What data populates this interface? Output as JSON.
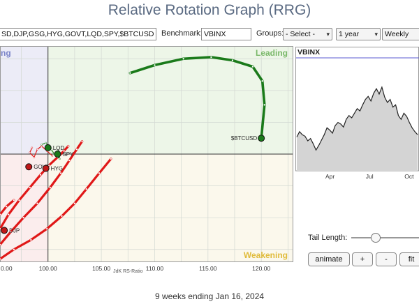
{
  "title": "Relative Rotation Graph (RRG)",
  "toolbar": {
    "symbols_value": "SD,DJP,GSG,HYG,GOVT,LQD,SPY,$BTCUSD",
    "benchmark_label": "Benchmark:",
    "benchmark_value": "VBINX",
    "groups_label": "Groups:",
    "groups_selected": "- Select -",
    "period_selected": "1 year",
    "frequency_selected": "Weekly"
  },
  "chart_data": [
    {
      "type": "scatter",
      "title": "",
      "xlabel": "JdK RS-Ratio",
      "ylabel": "",
      "xlim": [
        95.5,
        123
      ],
      "ylim": [
        93.2,
        106.8
      ],
      "x_ticks": [
        "100.00",
        "105.00",
        "110.00",
        "115.00",
        "120.00"
      ],
      "x_tick_values": [
        100,
        105,
        110,
        115,
        120
      ],
      "x_partial_tick": "0.00",
      "quadrants": {
        "leading": "Leading",
        "weakening": "Weakening",
        "lagging": "",
        "improving": "ng"
      },
      "center": [
        100,
        100
      ],
      "colors": {
        "leading": "#edf6e8",
        "weakening": "#fbf8ec",
        "lagging": "#fbeded",
        "improving": "#ececf7",
        "btc_tail": "#1a7a1a",
        "other_tails": "#e01818"
      },
      "series": [
        {
          "name": "$BTCUSD",
          "color": "#1a7a1a",
          "x": [
            107.7,
            110.0,
            112.7,
            115.3,
            117.3,
            119.2,
            120.1,
            120.3,
            120.0
          ],
          "y": [
            105.1,
            105.6,
            106.0,
            106.1,
            105.9,
            105.5,
            104.6,
            103.1,
            101.0
          ]
        },
        {
          "name": "",
          "color": "#e01818",
          "x": [
            95.5,
            96.8,
            98.4,
            99.9,
            101.3,
            102.5,
            103.6,
            104.8,
            105.9
          ],
          "y": [
            93.4,
            94.0,
            94.6,
            95.3,
            96.1,
            96.9,
            97.8,
            98.8,
            99.7
          ]
        },
        {
          "name": "",
          "color": "#e01818",
          "x": [
            95.5,
            96.5,
            97.7,
            99.0,
            100.2,
            101.2,
            102.0,
            102.7,
            103.2
          ],
          "y": [
            94.3,
            95.1,
            96.0,
            96.9,
            97.9,
            98.8,
            99.6,
            100.3,
            100.8
          ]
        },
        {
          "name": "",
          "color": "#e01818",
          "x": [
            95.5,
            96.3,
            97.3,
            98.3,
            99.3,
            100.1,
            100.9,
            101.5,
            101.9
          ],
          "y": [
            95.3,
            96.2,
            97.1,
            97.9,
            98.7,
            99.3,
            99.8,
            100.2,
            100.5
          ]
        },
        {
          "name": "",
          "color": "#e01818",
          "x": [
            95.5,
            96.1,
            96.8
          ],
          "y": [
            96.2,
            96.7,
            97.1
          ]
        },
        {
          "name": "",
          "color": "#e01818",
          "x": [
            98.5,
            98.3,
            98.7,
            99.0,
            99.4,
            99.9,
            100.4
          ],
          "y": [
            100.4,
            100.1,
            99.8,
            100.3,
            100.5,
            100.2,
            99.9
          ]
        },
        {
          "name": "",
          "color": "#2a8a2a",
          "x": [
            99.4,
            99.8,
            100.3,
            100.6,
            100.9,
            101.1,
            100.8
          ],
          "y": [
            100.6,
            100.7,
            100.3,
            100.0,
            100.2,
            99.7,
            99.9
          ]
        }
      ],
      "points": [
        {
          "label": "$BTCUSD",
          "x": 120.0,
          "y": 101.0,
          "color": "#1a7a1a"
        },
        {
          "label": "LQD",
          "x": 100.0,
          "y": 100.4,
          "color": "#1a7a1a"
        },
        {
          "label": "SPY",
          "x": 100.9,
          "y": 100.0,
          "color": "#1a7a1a"
        },
        {
          "label": "GOVT",
          "x": 98.2,
          "y": 99.2,
          "color": "#c01818"
        },
        {
          "label": "HYG",
          "x": 99.8,
          "y": 99.1,
          "color": "#c01818"
        },
        {
          "label": "DJP",
          "x": 95.9,
          "y": 95.2,
          "color": "#c01818"
        }
      ]
    },
    {
      "type": "area",
      "title": "VBINX",
      "x_ticks": [
        "Apr",
        "Jul",
        "Oct"
      ],
      "x": [
        0,
        1,
        2,
        3,
        4,
        5,
        6,
        7,
        8,
        9,
        10,
        11,
        12,
        13,
        14,
        15,
        16,
        17,
        18,
        19,
        20,
        21,
        22,
        23,
        24,
        25,
        26,
        27,
        28,
        29,
        30,
        31,
        32,
        33,
        34,
        35,
        36,
        37,
        38,
        39,
        40,
        41,
        42,
        43,
        44
      ],
      "values": [
        35,
        42,
        38,
        36,
        30,
        33,
        26,
        18,
        24,
        31,
        38,
        47,
        44,
        40,
        50,
        54,
        52,
        48,
        58,
        63,
        60,
        66,
        72,
        69,
        77,
        84,
        88,
        82,
        92,
        98,
        91,
        100,
        87,
        80,
        84,
        74,
        77,
        63,
        58,
        66,
        62,
        54,
        47,
        42,
        38
      ],
      "color_fill": "#d4d4d4",
      "color_line": "#222222"
    }
  ],
  "controls": {
    "tail_length_label": "Tail Length:",
    "tail_length_value": 0.35,
    "animate_label": "animate",
    "plus_label": "+",
    "minus_label": "-",
    "fit_label": "fit"
  },
  "footer": "9 weeks ending Jan 16, 2024"
}
